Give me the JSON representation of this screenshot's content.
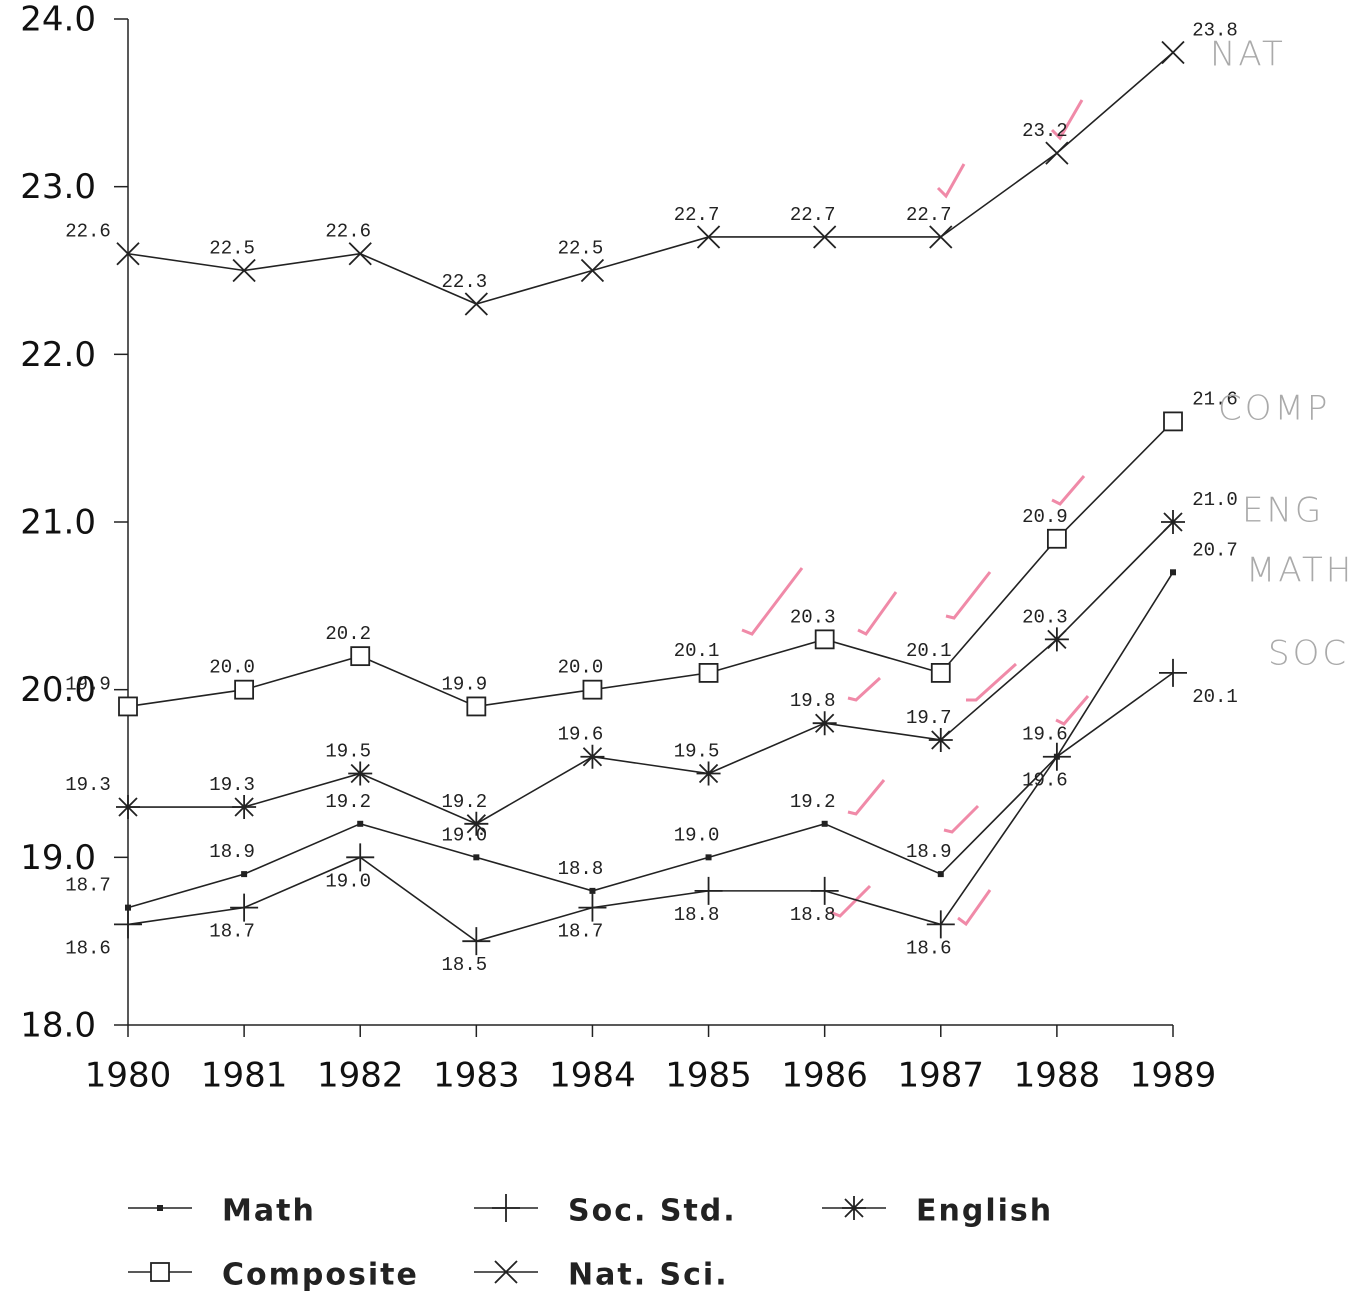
{
  "chart_data": {
    "type": "line",
    "categories": [
      "1980",
      "1981",
      "1982",
      "1983",
      "1984",
      "1985",
      "1986",
      "1987",
      "1988",
      "1989"
    ],
    "ylim": [
      18,
      24
    ],
    "yticks": [
      {
        "value": 18,
        "label": "18.0"
      },
      {
        "value": 19,
        "label": "19.0"
      },
      {
        "value": 20,
        "label": "20.0"
      },
      {
        "value": 21,
        "label": "21.0"
      },
      {
        "value": 22,
        "label": "22.0"
      },
      {
        "value": 23,
        "label": "23.0"
      },
      {
        "value": 24,
        "label": "24.0"
      }
    ],
    "series": [
      {
        "name": "Math",
        "marker": "dot",
        "color": "#222222",
        "values": [
          18.7,
          18.9,
          19.2,
          19.0,
          18.8,
          19.0,
          19.2,
          18.9,
          19.6,
          20.7
        ],
        "value_labels": [
          "18.7",
          "18.9",
          "19.2",
          "19.0",
          "18.8",
          "19.0",
          "19.2",
          "18.9",
          "19.6",
          "20.7"
        ]
      },
      {
        "name": "Soc. Std.",
        "marker": "plus",
        "color": "#222222",
        "values": [
          18.6,
          18.7,
          19.0,
          18.5,
          18.7,
          18.8,
          18.8,
          18.6,
          19.6,
          20.1
        ],
        "value_labels": [
          "18.6",
          "18.7",
          "19.0",
          "18.5",
          "18.7",
          "18.8",
          "18.8",
          "18.6",
          "19.6",
          "20.1"
        ]
      },
      {
        "name": "English",
        "marker": "asterisk",
        "color": "#222222",
        "values": [
          19.3,
          19.3,
          19.5,
          19.2,
          19.6,
          19.5,
          19.8,
          19.7,
          20.3,
          21.0
        ],
        "value_labels": [
          "19.3",
          "19.3",
          "19.5",
          "19.2",
          "19.6",
          "19.5",
          "19.8",
          "19.7",
          "20.3",
          "21.0"
        ]
      },
      {
        "name": "Composite",
        "marker": "square",
        "color": "#222222",
        "values": [
          19.9,
          20.0,
          20.2,
          19.9,
          20.0,
          20.1,
          20.3,
          20.1,
          20.9,
          21.6
        ],
        "value_labels": [
          "19.9",
          "20.0",
          "20.2",
          "19.9",
          "20.0",
          "20.1",
          "20.3",
          "20.1",
          "20.9",
          "21.6"
        ]
      },
      {
        "name": "Nat. Sci.",
        "marker": "cross",
        "color": "#222222",
        "values": [
          22.6,
          22.5,
          22.6,
          22.3,
          22.5,
          22.7,
          22.7,
          22.7,
          23.2,
          23.8
        ],
        "value_labels": [
          "22.6",
          "22.5",
          "22.6",
          "22.3",
          "22.5",
          "22.7",
          "22.7",
          "22.7",
          "23.2",
          "23.8"
        ]
      }
    ],
    "annotations": [
      "MATH",
      "SOC",
      "ENG",
      "COMP",
      "NAT"
    ]
  }
}
